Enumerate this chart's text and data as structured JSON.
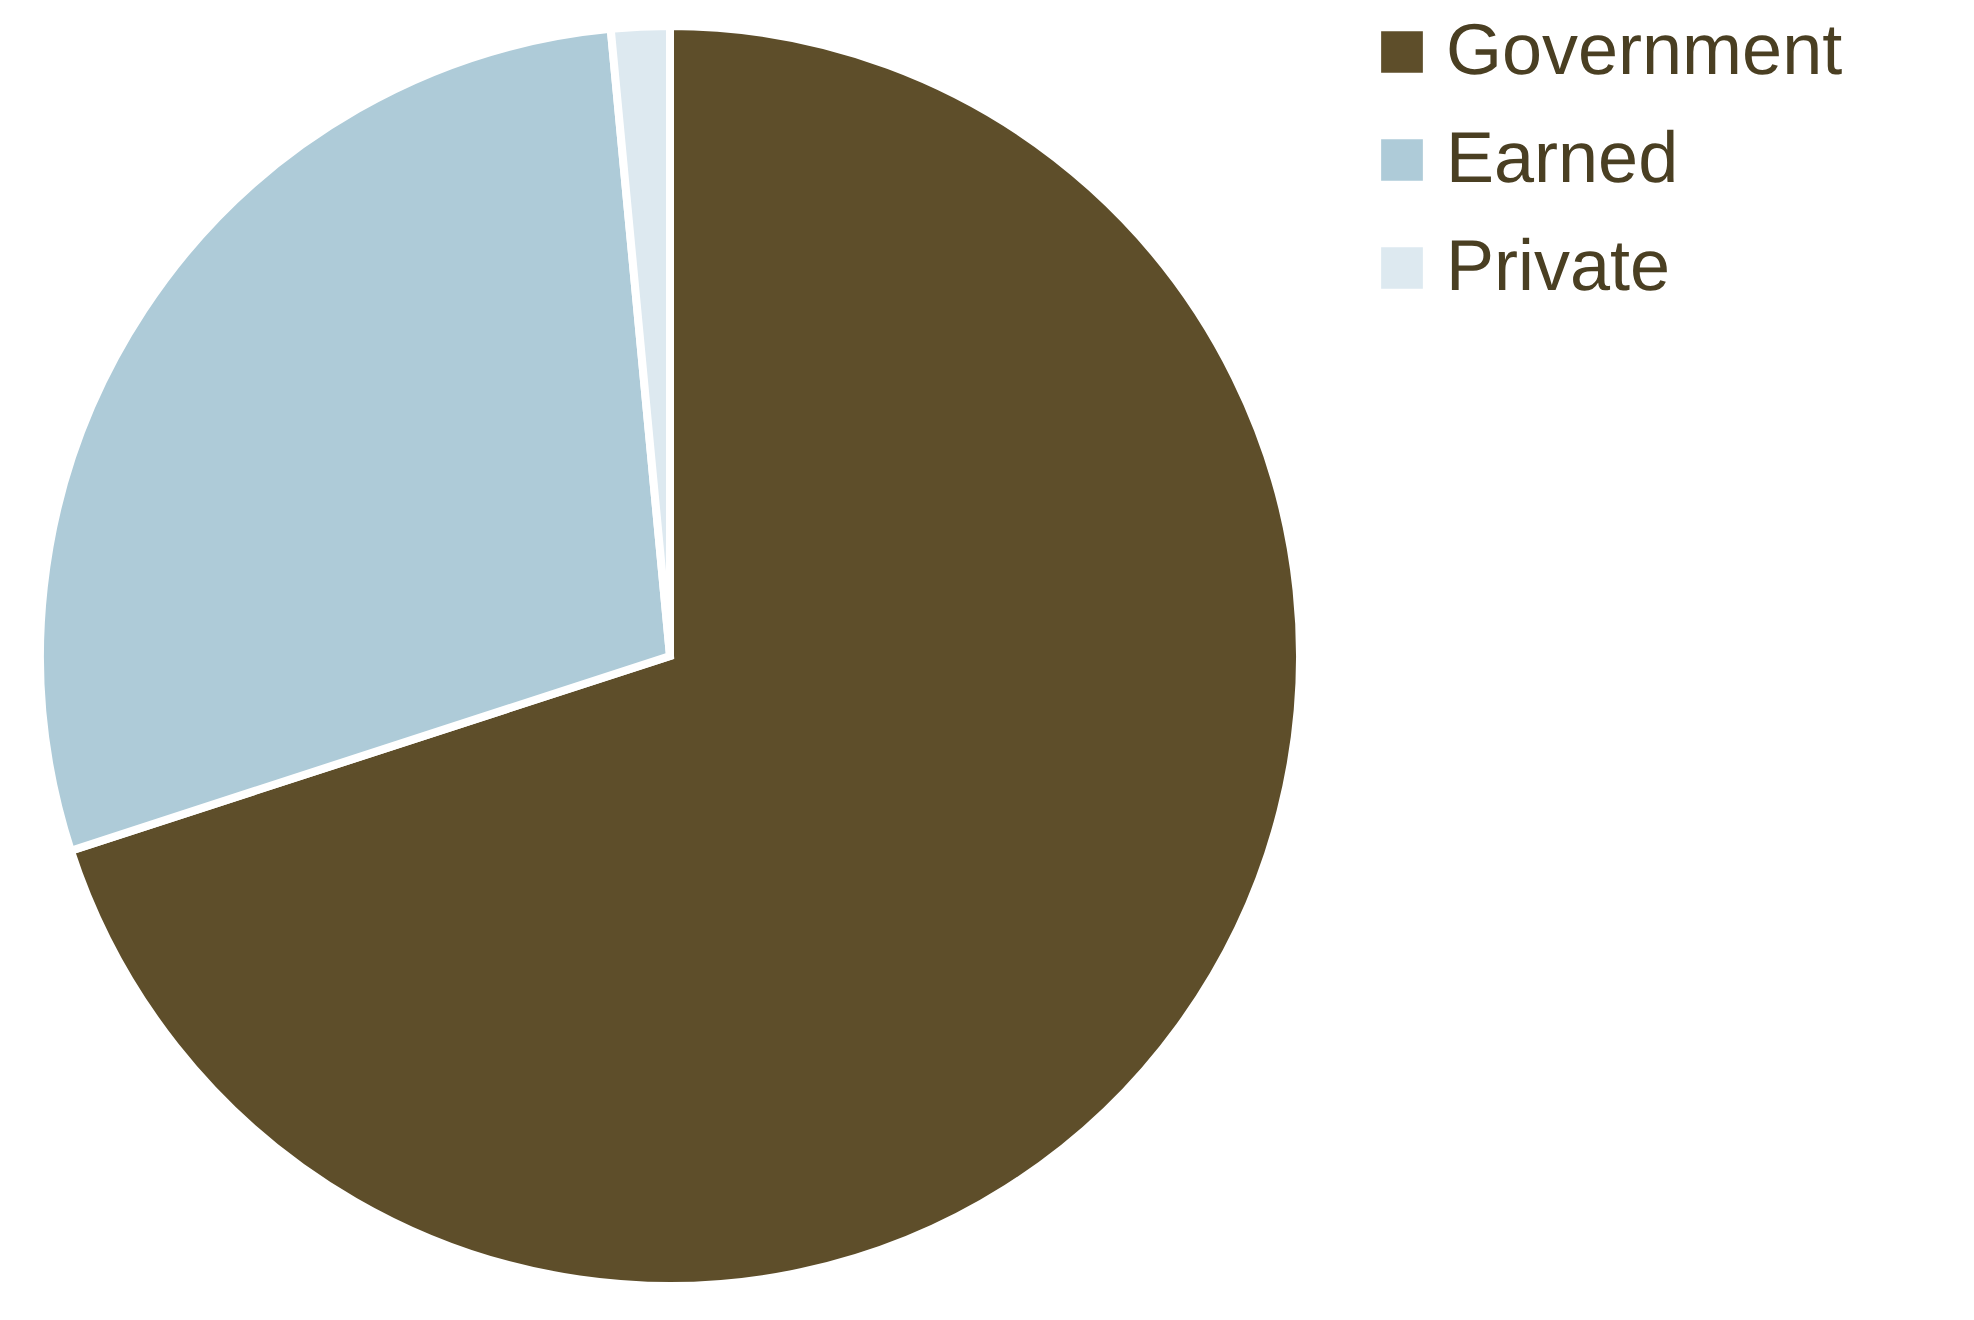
{
  "chart_data": {
    "type": "pie",
    "categories": [
      "Government",
      "Earned",
      "Private"
    ],
    "values": [
      70,
      28.5,
      1.5
    ],
    "colors": [
      "#5e4e2a",
      "#aecbd8",
      "#dde9f0"
    ],
    "legend": "right"
  }
}
